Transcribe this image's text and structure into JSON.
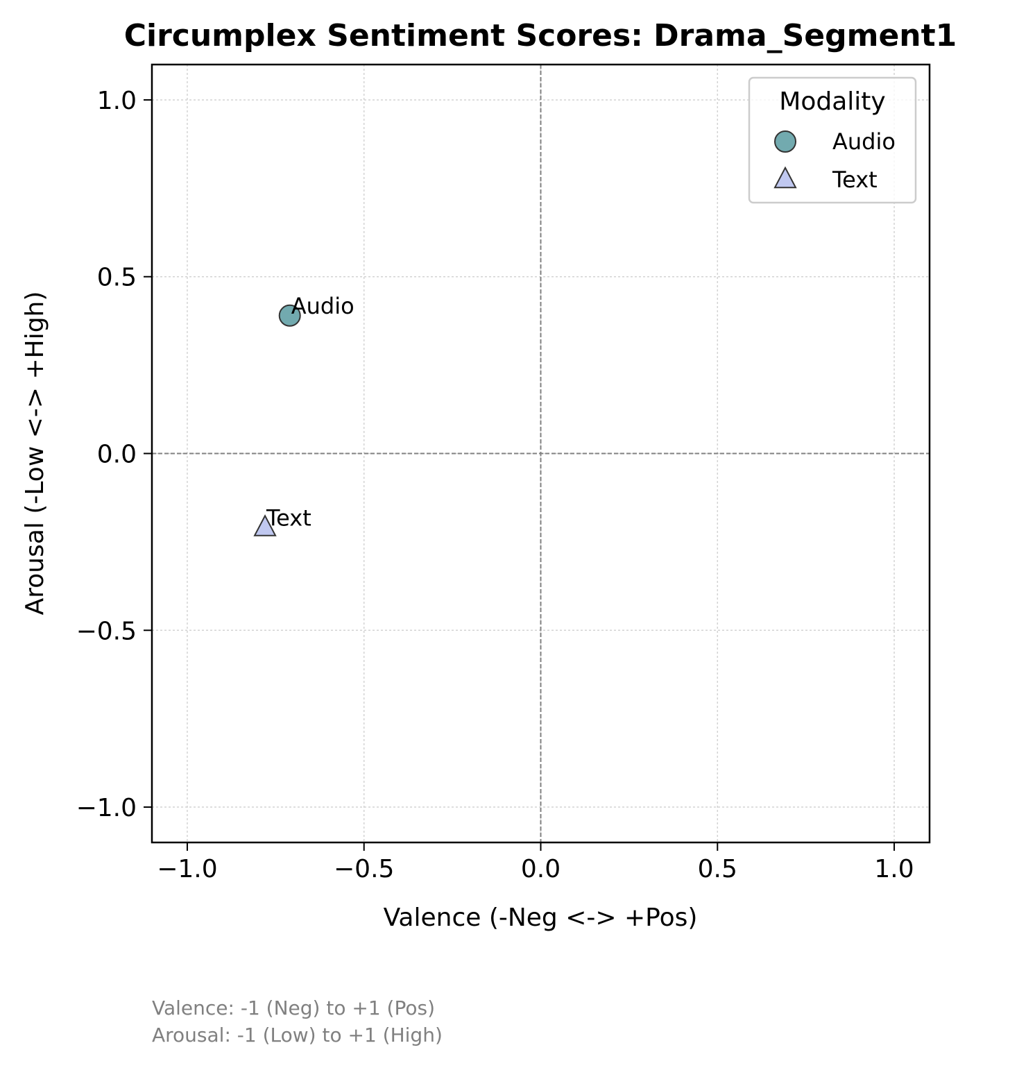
{
  "chart_data": {
    "type": "scatter",
    "title": "Circumplex Sentiment Scores: Drama_Segment1",
    "xlabel": "Valence (-Neg <-> +Pos)",
    "ylabel": "Arousal (-Low <-> +High)",
    "xlim": [
      -1.1,
      1.1
    ],
    "ylim": [
      -1.1,
      1.1
    ],
    "xticks": [
      -1.0,
      -0.5,
      0.0,
      0.5,
      1.0
    ],
    "yticks": [
      -1.0,
      -0.5,
      0.0,
      0.5,
      1.0
    ],
    "xtick_labels": [
      "−1.0",
      "−0.5",
      "0.0",
      "0.5",
      "1.0"
    ],
    "ytick_labels": [
      "−1.0",
      "−0.5",
      "0.0",
      "0.5",
      "1.0"
    ],
    "grid": true,
    "zero_lines": true,
    "legend": {
      "title": "Modality",
      "placement": "top-right"
    },
    "series": [
      {
        "name": "Audio",
        "marker": "circle",
        "color": "#72aaaf",
        "points": [
          {
            "x": -0.71,
            "y": 0.39,
            "label": "Audio"
          }
        ]
      },
      {
        "name": "Text",
        "marker": "triangle",
        "color": "#c0c8f0",
        "points": [
          {
            "x": -0.78,
            "y": -0.21,
            "label": "Text"
          }
        ]
      }
    ],
    "footnote": [
      "Valence: -1 (Neg) to +1 (Pos)",
      "Arousal: -1 (Low) to +1 (High)"
    ]
  }
}
